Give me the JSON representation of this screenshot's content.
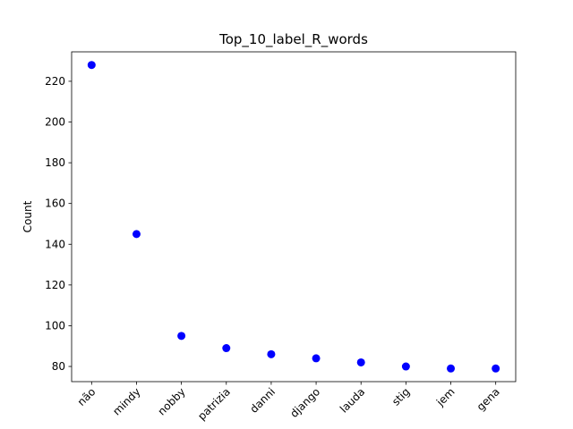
{
  "chart_data": {
    "type": "scatter",
    "title": "Top_10_label_R_words",
    "xlabel": "",
    "ylabel": "Count",
    "categories": [
      "não",
      "mindy",
      "nobby",
      "patrizia",
      "danni",
      "django",
      "lauda",
      "stig",
      "jem",
      "gena"
    ],
    "values": [
      228,
      145,
      95,
      89,
      86,
      84,
      82,
      80,
      79,
      79
    ],
    "ylim": [
      72.55,
      234.45
    ],
    "yticks": [
      80,
      100,
      120,
      140,
      160,
      180,
      200,
      220
    ],
    "grid": false,
    "marker_color": "#0000ff",
    "x_tick_rotation": 45
  }
}
